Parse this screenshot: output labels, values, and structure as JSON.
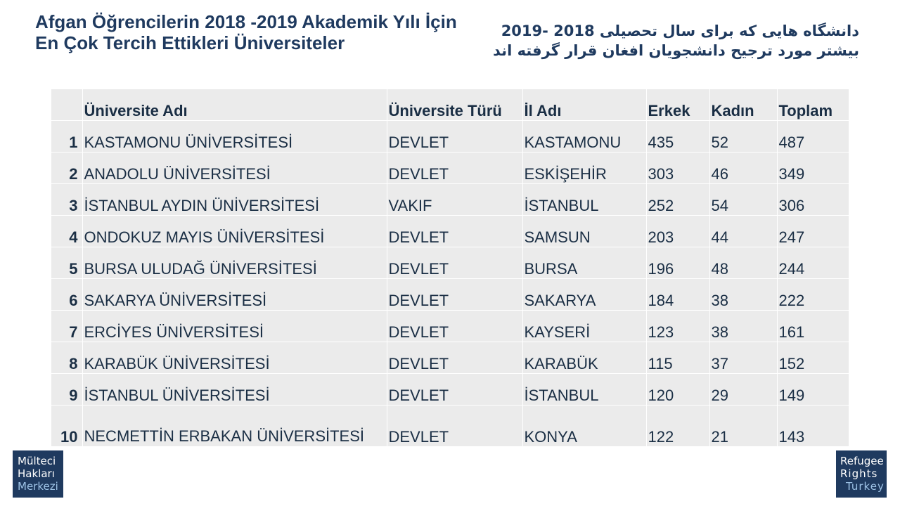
{
  "title_tr": "Afgan Öğrencilerin 2018 -2019 Akademik Yılı İçin En Çok Tercih Ettikleri Üniversiteler",
  "title_fa": "دانشگاه هایی که برای سال تحصیلی 2018 -2019 بیشتر مورد ترجیح دانشجویان افغان قرار گرفته اند",
  "table": {
    "headers": [
      "",
      "Üniversite Adı",
      "Üniversite Türü",
      "İl Adı",
      "Erkek",
      "Kadın",
      "Toplam"
    ],
    "rows": [
      {
        "no": "1",
        "name": "KASTAMONU ÜNİVERSİTESİ",
        "type": "DEVLET",
        "city": "KASTAMONU",
        "male": "435",
        "female": "52",
        "total": "487"
      },
      {
        "no": "2",
        "name": "ANADOLU ÜNİVERSİTESİ",
        "type": "DEVLET",
        "city": "ESKİŞEHİR",
        "male": "303",
        "female": "46",
        "total": "349"
      },
      {
        "no": "3",
        "name": "İSTANBUL AYDIN ÜNİVERSİTESİ",
        "type": "VAKIF",
        "city": "İSTANBUL",
        "male": "252",
        "female": "54",
        "total": "306"
      },
      {
        "no": "4",
        "name": "ONDOKUZ MAYIS ÜNİVERSİTESİ",
        "type": "DEVLET",
        "city": "SAMSUN",
        "male": "203",
        "female": "44",
        "total": "247"
      },
      {
        "no": "5",
        "name": "BURSA ULUDAĞ ÜNİVERSİTESİ",
        "type": "DEVLET",
        "city": "BURSA",
        "male": "196",
        "female": "48",
        "total": "244"
      },
      {
        "no": "6",
        "name": "SAKARYA ÜNİVERSİTESİ",
        "type": "DEVLET",
        "city": "SAKARYA",
        "male": "184",
        "female": "38",
        "total": "222"
      },
      {
        "no": "7",
        "name": "ERCİYES ÜNİVERSİTESİ",
        "type": "DEVLET",
        "city": "KAYSERİ",
        "male": "123",
        "female": "38",
        "total": "161"
      },
      {
        "no": "8",
        "name": "KARABÜK ÜNİVERSİTESİ",
        "type": "DEVLET",
        "city": "KARABÜK",
        "male": "115",
        "female": "37",
        "total": "152"
      },
      {
        "no": "9",
        "name": "İSTANBUL ÜNİVERSİTESİ",
        "type": "DEVLET",
        "city": "İSTANBUL",
        "male": "120",
        "female": "29",
        "total": "149"
      },
      {
        "no": "10",
        "name": "NECMETTİN ERBAKAN ÜNİVERSİTESİ",
        "type": "DEVLET",
        "city": "KONYA",
        "male": "122",
        "female": "21",
        "total": "143"
      }
    ]
  },
  "logos": {
    "left": [
      "Mülteci",
      "Hakları",
      "Merkezi"
    ],
    "right": [
      "Refugee",
      "Rights",
      "Turkey"
    ]
  },
  "colors": {
    "title": "#1f3a5f",
    "table_bg": "#ebebeb",
    "logo_bg": "#1f3a5f",
    "logo_accent": "#9ec3e6"
  }
}
